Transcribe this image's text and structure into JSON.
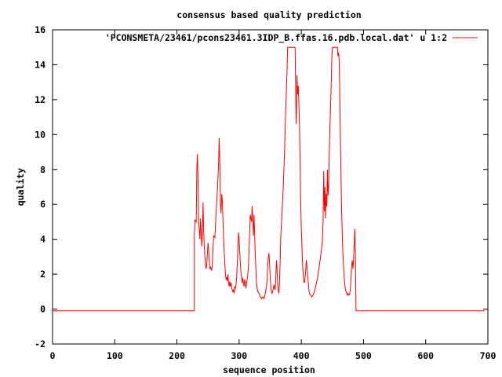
{
  "chart_data": {
    "type": "line",
    "title": "consensus based quality prediction",
    "xlabel": "sequence position",
    "ylabel": "quality",
    "xlim": [
      0,
      700
    ],
    "ylim": [
      -2,
      16
    ],
    "xticks": [
      0,
      100,
      200,
      300,
      400,
      500,
      600,
      700
    ],
    "yticks": [
      -2,
      0,
      2,
      4,
      6,
      8,
      10,
      12,
      14,
      16
    ],
    "legend_position": "top-right",
    "series": [
      {
        "name": "'PCONSMETA/23461/pcons23461.3IDP_B.ffas.16.pdb.local.dat' u 1:2",
        "color": "#ff0000",
        "points": [
          [
            1,
            -0.1
          ],
          [
            225,
            -0.1
          ],
          [
            228,
            -0.1
          ],
          [
            228,
            4.2
          ],
          [
            229,
            5.1
          ],
          [
            231,
            5.0
          ],
          [
            232,
            8.0
          ],
          [
            233,
            8.9
          ],
          [
            234,
            7.2
          ],
          [
            235,
            5.0
          ],
          [
            236,
            4.5
          ],
          [
            237,
            4.0
          ],
          [
            238,
            5.2
          ],
          [
            239,
            4.4
          ],
          [
            240,
            3.6
          ],
          [
            241,
            4.3
          ],
          [
            242,
            6.1
          ],
          [
            243,
            4.5
          ],
          [
            244,
            3.5
          ],
          [
            245,
            3.0
          ],
          [
            246,
            2.6
          ],
          [
            247,
            2.3
          ],
          [
            248,
            2.6
          ],
          [
            249,
            3.2
          ],
          [
            250,
            3.8
          ],
          [
            251,
            3.4
          ],
          [
            252,
            2.7
          ],
          [
            253,
            2.3
          ],
          [
            254,
            2.4
          ],
          [
            255,
            2.3
          ],
          [
            256,
            2.2
          ],
          [
            257,
            2.6
          ],
          [
            258,
            3.4
          ],
          [
            259,
            4.2
          ],
          [
            261,
            4.1
          ],
          [
            263,
            5.5
          ],
          [
            265,
            6.8
          ],
          [
            267,
            8.4
          ],
          [
            268,
            9.8
          ],
          [
            269,
            8.3
          ],
          [
            270,
            6.0
          ],
          [
            271,
            5.5
          ],
          [
            272,
            6.6
          ],
          [
            273,
            6.2
          ],
          [
            274,
            5.1
          ],
          [
            275,
            4.1
          ],
          [
            276,
            3.3
          ],
          [
            277,
            2.6
          ],
          [
            278,
            2.0
          ],
          [
            279,
            1.7
          ],
          [
            280,
            1.8
          ],
          [
            281,
            1.6
          ],
          [
            282,
            2.0
          ],
          [
            283,
            1.5
          ],
          [
            284,
            1.3
          ],
          [
            285,
            1.6
          ],
          [
            286,
            1.3
          ],
          [
            287,
            1.5
          ],
          [
            288,
            1.2
          ],
          [
            289,
            1.1
          ],
          [
            290,
            1.0
          ],
          [
            291,
            1.1
          ],
          [
            292,
            0.9
          ],
          [
            293,
            1.3
          ],
          [
            294,
            1.2
          ],
          [
            295,
            1.4
          ],
          [
            296,
            1.8
          ],
          [
            297,
            2.6
          ],
          [
            298,
            3.4
          ],
          [
            299,
            4.4
          ],
          [
            300,
            4.0
          ],
          [
            301,
            3.3
          ],
          [
            302,
            2.6
          ],
          [
            303,
            2.1
          ],
          [
            304,
            1.8
          ],
          [
            305,
            1.5
          ],
          [
            306,
            1.8
          ],
          [
            307,
            1.5
          ],
          [
            308,
            1.3
          ],
          [
            309,
            1.7
          ],
          [
            310,
            1.5
          ],
          [
            311,
            1.2
          ],
          [
            312,
            1.5
          ],
          [
            313,
            1.7
          ],
          [
            314,
            2.0
          ],
          [
            315,
            2.5
          ],
          [
            316,
            3.4
          ],
          [
            317,
            4.5
          ],
          [
            318,
            5.4
          ],
          [
            319,
            5.2
          ],
          [
            320,
            5.0
          ],
          [
            321,
            5.9
          ],
          [
            322,
            5.1
          ],
          [
            323,
            4.2
          ],
          [
            324,
            5.4
          ],
          [
            325,
            4.2
          ],
          [
            326,
            3.1
          ],
          [
            327,
            2.2
          ],
          [
            328,
            1.5
          ],
          [
            329,
            1.2
          ],
          [
            330,
            1.0
          ],
          [
            332,
            0.9
          ],
          [
            334,
            0.7
          ],
          [
            336,
            0.6
          ],
          [
            338,
            0.7
          ],
          [
            340,
            0.6
          ],
          [
            342,
            0.9
          ],
          [
            344,
            1.3
          ],
          [
            345,
            1.7
          ],
          [
            346,
            2.5
          ],
          [
            347,
            3.0
          ],
          [
            348,
            3.2
          ],
          [
            349,
            2.6
          ],
          [
            350,
            1.8
          ],
          [
            351,
            1.3
          ],
          [
            352,
            1.0
          ],
          [
            353,
            0.9
          ],
          [
            354,
            1.0
          ],
          [
            355,
            1.2
          ],
          [
            356,
            1.4
          ],
          [
            357,
            1.2
          ],
          [
            358,
            1.1
          ],
          [
            359,
            1.8
          ],
          [
            360,
            2.8
          ],
          [
            361,
            2.3
          ],
          [
            362,
            1.4
          ],
          [
            363,
            1.1
          ],
          [
            364,
            0.9
          ],
          [
            365,
            1.6
          ],
          [
            366,
            2.8
          ],
          [
            367,
            4.2
          ],
          [
            369,
            5.5
          ],
          [
            371,
            7.0
          ],
          [
            373,
            9.0
          ],
          [
            375,
            11.5
          ],
          [
            377,
            13.6
          ],
          [
            378,
            15.0
          ],
          [
            390,
            15.0
          ],
          [
            391,
            12.2
          ],
          [
            392,
            10.6
          ],
          [
            393,
            13.4
          ],
          [
            394,
            12.3
          ],
          [
            395,
            12.8
          ],
          [
            396,
            11.9
          ],
          [
            397,
            10.6
          ],
          [
            398,
            8.5
          ],
          [
            399,
            6.2
          ],
          [
            400,
            4.6
          ],
          [
            401,
            3.6
          ],
          [
            402,
            2.6
          ],
          [
            403,
            2.0
          ],
          [
            404,
            1.6
          ],
          [
            405,
            1.5
          ],
          [
            406,
            1.8
          ],
          [
            407,
            2.2
          ],
          [
            408,
            2.8
          ],
          [
            409,
            2.5
          ],
          [
            410,
            2.0
          ],
          [
            411,
            1.6
          ],
          [
            412,
            1.2
          ],
          [
            413,
            0.9
          ],
          [
            415,
            0.8
          ],
          [
            417,
            0.7
          ],
          [
            419,
            0.8
          ],
          [
            421,
            1.0
          ],
          [
            423,
            1.3
          ],
          [
            425,
            1.6
          ],
          [
            427,
            2.0
          ],
          [
            429,
            2.5
          ],
          [
            431,
            3.0
          ],
          [
            433,
            3.6
          ],
          [
            434,
            4.0
          ],
          [
            435,
            5.0
          ],
          [
            436,
            7.9
          ],
          [
            437,
            5.6
          ],
          [
            438,
            7.0
          ],
          [
            439,
            5.2
          ],
          [
            440,
            6.6
          ],
          [
            441,
            5.9
          ],
          [
            442,
            8.0
          ],
          [
            443,
            6.5
          ],
          [
            444,
            7.0
          ],
          [
            445,
            9.0
          ],
          [
            446,
            10.4
          ],
          [
            447,
            11.5
          ],
          [
            448,
            12.8
          ],
          [
            449,
            14.3
          ],
          [
            450,
            15.0
          ],
          [
            458,
            15.0
          ],
          [
            459,
            14.5
          ],
          [
            460,
            14.7
          ],
          [
            461,
            14.1
          ],
          [
            462,
            12.0
          ],
          [
            463,
            9.5
          ],
          [
            464,
            7.2
          ],
          [
            465,
            5.4
          ],
          [
            466,
            4.1
          ],
          [
            467,
            3.1
          ],
          [
            468,
            2.4
          ],
          [
            469,
            1.8
          ],
          [
            470,
            1.4
          ],
          [
            471,
            1.1
          ],
          [
            472,
            1.0
          ],
          [
            473,
            0.9
          ],
          [
            474,
            0.8
          ],
          [
            475,
            0.9
          ],
          [
            476,
            0.8
          ],
          [
            477,
            0.8
          ],
          [
            478,
            0.9
          ],
          [
            479,
            1.2
          ],
          [
            480,
            1.8
          ],
          [
            481,
            2.5
          ],
          [
            482,
            2.8
          ],
          [
            483,
            2.3
          ],
          [
            484,
            2.8
          ],
          [
            485,
            3.6
          ],
          [
            486,
            4.6
          ],
          [
            487,
            3.2
          ],
          [
            488,
            -0.1
          ],
          [
            695,
            -0.1
          ]
        ]
      }
    ]
  }
}
